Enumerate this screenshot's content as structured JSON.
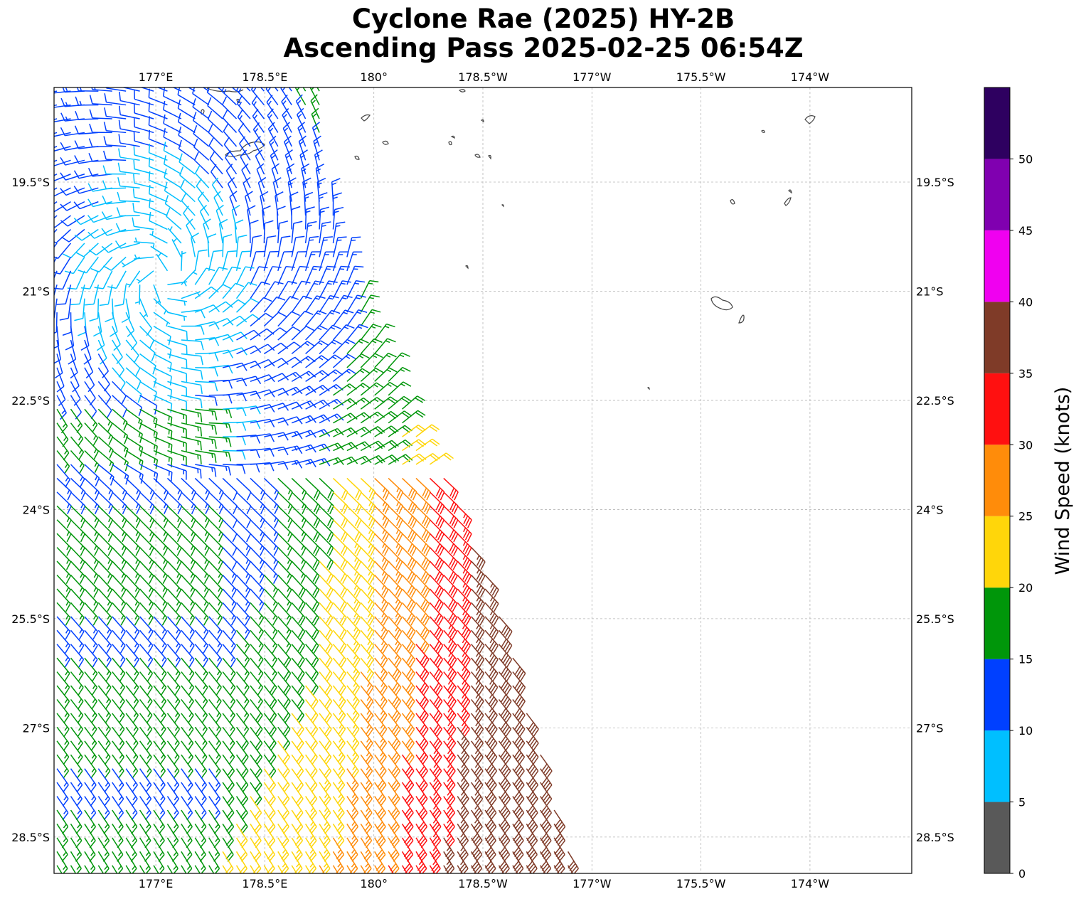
{
  "title": {
    "line1": "Cyclone Rae (2025) HY-2B",
    "line2": "Ascending Pass 2025-02-25 06:54Z"
  },
  "map": {
    "lon_ticks": [
      {
        "lon": 177.0,
        "label": "177°E"
      },
      {
        "lon": 178.5,
        "label": "178.5°E"
      },
      {
        "lon": 180.0,
        "label": "180°"
      },
      {
        "lon": 181.5,
        "label": "178.5°W"
      },
      {
        "lon": 183.0,
        "label": "177°W"
      },
      {
        "lon": 184.5,
        "label": "175.5°W"
      },
      {
        "lon": 186.0,
        "label": "174°W"
      }
    ],
    "lat_ticks": [
      {
        "lat": -19.5,
        "label": "19.5°S"
      },
      {
        "lat": -21.0,
        "label": "21°S"
      },
      {
        "lat": -22.5,
        "label": "22.5°S"
      },
      {
        "lat": -24.0,
        "label": "24°S"
      },
      {
        "lat": -25.5,
        "label": "25.5°S"
      },
      {
        "lat": -27.0,
        "label": "27°S"
      },
      {
        "lat": -28.5,
        "label": "28.5°S"
      }
    ],
    "extent": {
      "lon_min": 175.6,
      "lon_max": 187.4,
      "lat_min": -29.0,
      "lat_max": -18.2
    },
    "gridlines": true,
    "coastline_color": "#444444"
  },
  "colorbar": {
    "label": "Wind Speed (knots)",
    "ticks": [
      "0",
      "5",
      "10",
      "15",
      "20",
      "25",
      "30",
      "35",
      "40",
      "45",
      "50"
    ],
    "bins": [
      {
        "from": 0,
        "to": 5,
        "color": "#595959"
      },
      {
        "from": 5,
        "to": 10,
        "color": "#00bfff"
      },
      {
        "from": 10,
        "to": 15,
        "color": "#0040ff"
      },
      {
        "from": 15,
        "to": 20,
        "color": "#00960a"
      },
      {
        "from": 20,
        "to": 25,
        "color": "#ffd60a"
      },
      {
        "from": 25,
        "to": 30,
        "color": "#ff8c0a"
      },
      {
        "from": 30,
        "to": 35,
        "color": "#ff1010"
      },
      {
        "from": 35,
        "to": 40,
        "color": "#7f3b28"
      },
      {
        "from": 40,
        "to": 45,
        "color": "#f000f0"
      },
      {
        "from": 45,
        "to": 50,
        "color": "#8000b0"
      },
      {
        "from": 50,
        "to": 55,
        "color": "#2e0060"
      }
    ]
  },
  "chart_data": {
    "type": "wind-barbs",
    "units": "knots",
    "center_estimate": {
      "lon": 177.1,
      "lat": -20.8
    },
    "swath": [
      {
        "lat": -18.2,
        "lon_west": 175.6,
        "lon_east": 179.3
      },
      {
        "lat": -19.5,
        "lon_west": 175.6,
        "lon_east": 179.4
      },
      {
        "lat": -21.0,
        "lon_west": 175.6,
        "lon_east": 179.8
      },
      {
        "lat": -22.5,
        "lon_west": 175.6,
        "lon_east": 180.4
      },
      {
        "lat": -24.0,
        "lon_west": 175.6,
        "lon_east": 181.2
      },
      {
        "lat": -25.5,
        "lon_west": 175.6,
        "lon_east": 181.8
      },
      {
        "lat": -27.0,
        "lon_west": 175.6,
        "lon_east": 182.2
      },
      {
        "lat": -28.5,
        "lon_west": 175.6,
        "lon_east": 182.6
      },
      {
        "lat": -29.0,
        "lon_west": 175.6,
        "lon_east": 182.8
      }
    ]
  }
}
